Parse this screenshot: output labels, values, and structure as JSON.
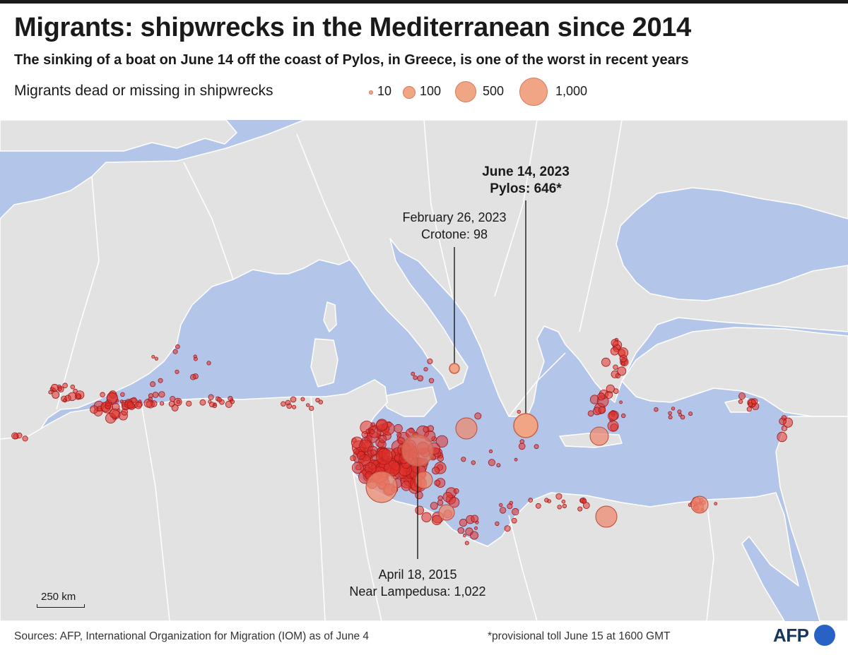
{
  "header": {
    "title": "Migrants: shipwrecks in the Mediterranean since 2014",
    "subtitle": "The sinking of a boat on June 14 off the coast of Pylos, in Greece, is one of the worst in recent years"
  },
  "legend": {
    "title": "Migrants dead or missing in shipwrecks",
    "items": [
      {
        "label": "10",
        "value": 10
      },
      {
        "label": "100",
        "value": 100
      },
      {
        "label": "500",
        "value": 500
      },
      {
        "label": "1,000",
        "value": 1000
      }
    ]
  },
  "annotations": {
    "pylos": {
      "date": "June 14, 2023",
      "detail": "Pylos: 646*",
      "value": 646
    },
    "crotone": {
      "date": "February 26, 2023",
      "detail": "Crotone: 98",
      "value": 98
    },
    "lampedusa": {
      "date": "April 18, 2015",
      "detail": "Near Lampedusa: 1,022",
      "value": 1022
    }
  },
  "scale": {
    "label": "250 km"
  },
  "footer": {
    "sources": "Sources: AFP, International Organization for Migration (IOM) as of June 4",
    "note": "*provisional toll June 15 at 1600 GMT",
    "brand": "AFP"
  },
  "colors": {
    "sea": "#b3c6ea",
    "land": "#e2e2e2",
    "border": "#ffffff",
    "dot_fill": "#e0302a",
    "dot_stroke": "#a01818",
    "highlight_fill": "#f0a585",
    "brand_blue": "#2962c5"
  }
}
